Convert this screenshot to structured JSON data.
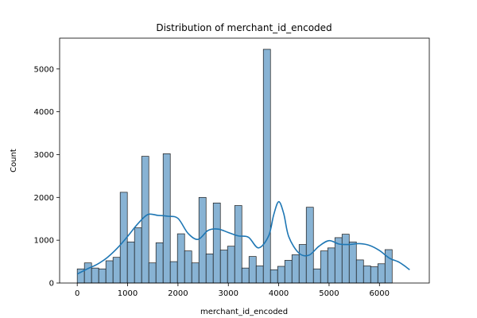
{
  "chart_data": {
    "type": "bar",
    "title": "Distribution of merchant_id_encoded",
    "xlabel": "merchant_id_encoded",
    "ylabel": "Count",
    "xlim": [
      -350,
      6990
    ],
    "ylim": [
      0,
      5720
    ],
    "xticks": [
      0,
      1000,
      2000,
      3000,
      4000,
      5000,
      6000
    ],
    "yticks": [
      0,
      1000,
      2000,
      3000,
      4000,
      5000
    ],
    "bin_width": 142.1,
    "bin_start": 0,
    "counts": [
      330,
      470,
      350,
      330,
      520,
      600,
      2120,
      960,
      1290,
      2960,
      470,
      940,
      3020,
      500,
      1150,
      750,
      470,
      2000,
      680,
      1870,
      770,
      860,
      1810,
      350,
      620,
      400,
      5460,
      310,
      390,
      530,
      660,
      900,
      1770,
      330,
      750,
      820,
      1060,
      1140,
      960,
      540,
      400,
      380,
      450,
      780
    ],
    "kde": {
      "x": [
        0,
        200,
        400,
        600,
        800,
        1000,
        1200,
        1400,
        1600,
        1800,
        2000,
        2200,
        2400,
        2600,
        2800,
        3000,
        3200,
        3400,
        3600,
        3800,
        3900,
        4000,
        4100,
        4200,
        4400,
        4600,
        4800,
        5000,
        5200,
        5400,
        5600,
        5800,
        6000,
        6200,
        6400,
        6600
      ],
      "y": [
        210,
        330,
        440,
        600,
        820,
        1090,
        1380,
        1600,
        1580,
        1560,
        1510,
        1160,
        1020,
        1230,
        1260,
        1180,
        1100,
        1070,
        820,
        1100,
        1590,
        1900,
        1620,
        1080,
        700,
        650,
        860,
        990,
        910,
        900,
        920,
        880,
        760,
        580,
        480,
        310
      ]
    },
    "colors": {
      "bar_fill": "#88b3d4",
      "bar_edge": "#1a1a1a",
      "kde_line": "#1f77b4"
    },
    "grid": false,
    "legend": "none"
  }
}
